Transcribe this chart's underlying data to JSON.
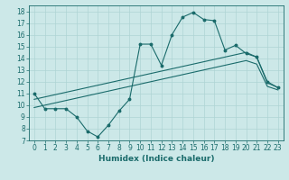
{
  "bg_color": "#cce8e8",
  "line_color": "#1a6b6b",
  "grid_color": "#afd4d4",
  "xlabel": "Humidex (Indice chaleur)",
  "ylim": [
    7,
    18.5
  ],
  "xlim": [
    -0.5,
    23.5
  ],
  "yticks": [
    7,
    8,
    9,
    10,
    11,
    12,
    13,
    14,
    15,
    16,
    17,
    18
  ],
  "xticks": [
    0,
    1,
    2,
    3,
    4,
    5,
    6,
    7,
    8,
    9,
    10,
    11,
    12,
    13,
    14,
    15,
    16,
    17,
    18,
    19,
    20,
    21,
    22,
    23
  ],
  "line1_x": [
    0,
    1,
    2,
    3,
    4,
    5,
    6,
    7,
    8,
    9,
    10,
    11,
    12,
    13,
    14,
    15,
    16,
    17,
    18,
    19,
    20,
    21,
    22,
    23
  ],
  "line1_y": [
    11.0,
    9.7,
    9.7,
    9.7,
    9.0,
    7.8,
    7.3,
    8.3,
    9.5,
    10.5,
    15.2,
    15.2,
    13.4,
    16.0,
    17.5,
    17.9,
    17.3,
    17.2,
    14.7,
    15.1,
    14.4,
    14.1,
    12.0,
    11.5
  ],
  "line2_x": [
    0,
    1,
    2,
    3,
    4,
    5,
    6,
    7,
    8,
    9,
    10,
    11,
    12,
    13,
    14,
    15,
    16,
    17,
    18,
    19,
    20,
    21,
    22,
    23
  ],
  "line2_y": [
    10.5,
    10.7,
    10.9,
    11.1,
    11.3,
    11.5,
    11.7,
    11.9,
    12.1,
    12.3,
    12.5,
    12.7,
    12.9,
    13.1,
    13.3,
    13.5,
    13.7,
    13.9,
    14.1,
    14.3,
    14.5,
    14.1,
    11.9,
    11.5
  ],
  "line3_x": [
    0,
    1,
    2,
    3,
    4,
    5,
    6,
    7,
    8,
    9,
    10,
    11,
    12,
    13,
    14,
    15,
    16,
    17,
    18,
    19,
    20,
    21,
    22,
    23
  ],
  "line3_y": [
    9.8,
    10.0,
    10.2,
    10.4,
    10.6,
    10.8,
    11.0,
    11.2,
    11.4,
    11.6,
    11.8,
    12.0,
    12.2,
    12.4,
    12.6,
    12.8,
    13.0,
    13.2,
    13.4,
    13.6,
    13.8,
    13.5,
    11.6,
    11.3
  ],
  "tick_fontsize": 5.5,
  "label_fontsize": 6.5,
  "label_fontweight": "bold"
}
